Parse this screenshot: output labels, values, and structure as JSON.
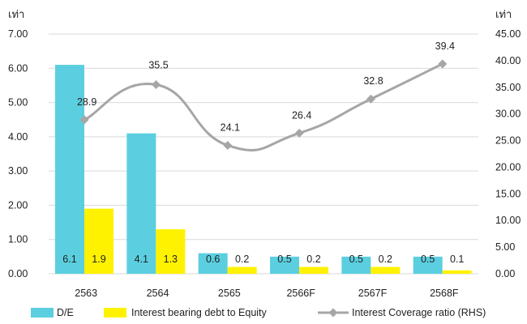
{
  "chart_data": {
    "type": "bar",
    "categories": [
      "2563",
      "2564",
      "2565",
      "2566F",
      "2567F",
      "2568F"
    ],
    "series": [
      {
        "name": "D/E",
        "type": "bar",
        "axis": "left",
        "color": "#5bcfdf",
        "values": [
          6.1,
          4.1,
          0.6,
          0.5,
          0.5,
          0.5
        ],
        "labels": [
          "6.1",
          "4.1",
          "0.6",
          "0.5",
          "0.5",
          "0.5"
        ]
      },
      {
        "name": "Interest bearing debt to Equity",
        "type": "bar",
        "axis": "left",
        "color": "#fff200",
        "values": [
          1.9,
          1.3,
          0.2,
          0.2,
          0.2,
          0.1
        ],
        "labels": [
          "1.9",
          "1.3",
          "0.2",
          "0.2",
          "0.2",
          "0.1"
        ]
      },
      {
        "name": "Interest Coverage ratio (RHS)",
        "type": "line",
        "axis": "right",
        "color": "#a6a6a6",
        "values": [
          28.9,
          35.5,
          24.1,
          26.4,
          32.8,
          39.4
        ],
        "labels": [
          "28.9",
          "35.5",
          "24.1",
          "26.4",
          "32.8",
          "39.4"
        ]
      }
    ],
    "left_axis": {
      "unit": "เท่า",
      "min": 0,
      "max": 7,
      "ticks": [
        "0.00",
        "1.00",
        "2.00",
        "3.00",
        "4.00",
        "5.00",
        "6.00",
        "7.00"
      ]
    },
    "right_axis": {
      "unit": "เท่า",
      "min": 0,
      "max": 45,
      "ticks": [
        "0.00",
        "5.00",
        "10.00",
        "15.00",
        "20.00",
        "25.00",
        "30.00",
        "35.00",
        "40.00",
        "45.00"
      ]
    },
    "grid": true,
    "legend_position": "bottom"
  }
}
